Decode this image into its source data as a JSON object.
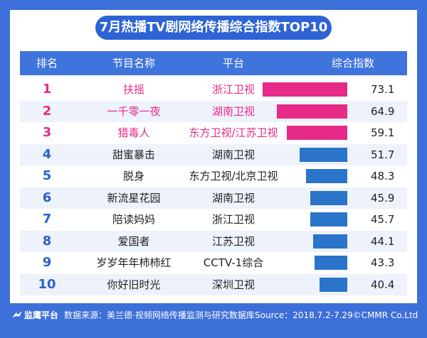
{
  "title": "7月热播TV剧网络传播综合指数TOP10",
  "headers": {
    "rank": "排名",
    "name": "节目名称",
    "platform": "平台",
    "index": "综合指数"
  },
  "colors": {
    "top3": "#e62a87",
    "rest": "#2a74c9"
  },
  "chart_data": {
    "type": "bar",
    "categories": [
      "扶摇",
      "一千零一夜",
      "猎毒人",
      "甜蜜暴击",
      "脱身",
      "新流星花园",
      "陪读妈妈",
      "爱国者",
      "岁岁年年柿柿红",
      "你好旧时光"
    ],
    "ranks": [
      "1",
      "2",
      "3",
      "4",
      "5",
      "6",
      "7",
      "8",
      "9",
      "10"
    ],
    "platforms": [
      "浙江卫视",
      "湖南卫视",
      "东方卫视/江苏卫视",
      "湖南卫视",
      "东方卫视/北京卫视",
      "湖南卫视",
      "浙江卫视",
      "江苏卫视",
      "CCTV-1综合",
      "深圳卫视"
    ],
    "values": [
      73.1,
      64.9,
      59.1,
      51.7,
      48.3,
      45.9,
      45.7,
      44.1,
      43.3,
      40.4
    ],
    "value_labels": [
      "73.1",
      "64.9",
      "59.1",
      "51.7",
      "48.3",
      "45.9",
      "45.7",
      "44.1",
      "43.3",
      "40.4"
    ]
  },
  "footer": {
    "brand": "监鹰平台",
    "source": "数据来源：美兰德·视频网络传播监测与研究数据库",
    "source_en": "Source：2018.7.2-7.29©CMMR Co.Ltd"
  }
}
